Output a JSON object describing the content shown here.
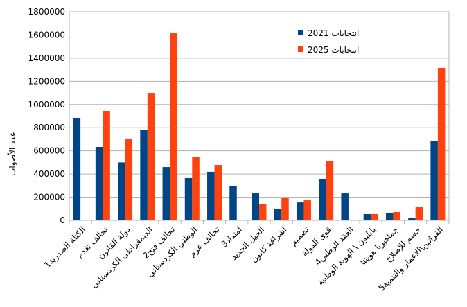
{
  "chart_data": {
    "type": "bar",
    "title": "",
    "xlabel": "",
    "ylabel": "عدد الأصوات",
    "ylim": [
      0,
      1800000
    ],
    "yticks": [
      "0",
      "200000",
      "400000",
      "600000",
      "800000",
      "1000000",
      "1200000",
      "1400000",
      "1600000",
      "1800000"
    ],
    "grid": true,
    "legend_position": "top-right",
    "categories": [
      "الكتلة الصدرية1",
      "تحالف تقدم",
      "دولة القانون",
      "الديمقراطي الكردستاني",
      "تحالف فتح2",
      "الوطني الكردستاني",
      "تحالف عزم",
      "امتداد3",
      "الجيل الجديد",
      "اشراقة كانون",
      "تصميم",
      "قوى الدولة",
      "العقد الوطني4",
      "بابليون \\ الهوية الوطنية",
      "جماهيرنا هويتنا",
      "حسم للإصلاح",
      "الفراتين\\الاعمار والتنمية5"
    ],
    "series": [
      {
        "name": "انتخابات 2021",
        "color": "#004586",
        "values": [
          885000,
          634000,
          500000,
          778000,
          460000,
          365000,
          419000,
          299000,
          233000,
          102000,
          155000,
          359000,
          233000,
          54000,
          60000,
          24000,
          682000
        ]
      },
      {
        "name": "انتخابات 2025",
        "color": "#ff420e",
        "values": [
          5000,
          945000,
          706000,
          1100000,
          1615000,
          544000,
          478000,
          5000,
          138000,
          197000,
          173000,
          514000,
          3000,
          54000,
          72000,
          114000,
          1316000
        ]
      }
    ]
  }
}
